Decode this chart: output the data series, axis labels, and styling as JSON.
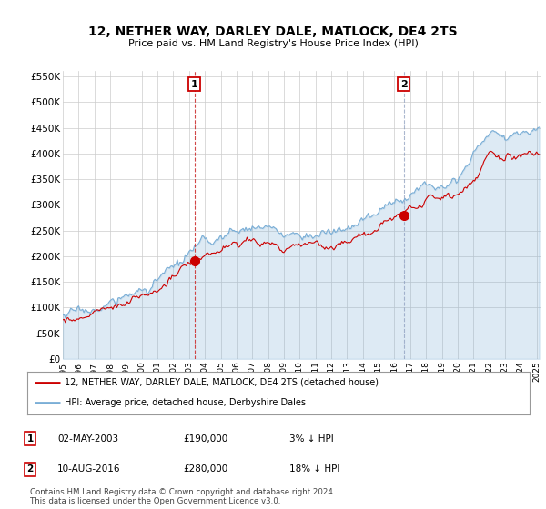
{
  "title": "12, NETHER WAY, DARLEY DALE, MATLOCK, DE4 2TS",
  "subtitle": "Price paid vs. HM Land Registry's House Price Index (HPI)",
  "ylabel_ticks": [
    "£0",
    "£50K",
    "£100K",
    "£150K",
    "£200K",
    "£250K",
    "£300K",
    "£350K",
    "£400K",
    "£450K",
    "£500K",
    "£550K"
  ],
  "ytick_values": [
    0,
    50000,
    100000,
    150000,
    200000,
    250000,
    300000,
    350000,
    400000,
    450000,
    500000,
    550000
  ],
  "ylim": [
    0,
    560000
  ],
  "sale1_year": 2003,
  "sale1_month": 5,
  "sale1_price": 190000,
  "sale2_year": 2016,
  "sale2_month": 8,
  "sale2_price": 280000,
  "legend_line1": "12, NETHER WAY, DARLEY DALE, MATLOCK, DE4 2TS (detached house)",
  "legend_line2": "HPI: Average price, detached house, Derbyshire Dales",
  "table_row1": [
    "1",
    "02-MAY-2003",
    "£190,000",
    "3% ↓ HPI"
  ],
  "table_row2": [
    "2",
    "10-AUG-2016",
    "£280,000",
    "18% ↓ HPI"
  ],
  "footer": "Contains HM Land Registry data © Crown copyright and database right 2024.\nThis data is licensed under the Open Government Licence v3.0.",
  "line_color_red": "#cc0000",
  "line_color_blue": "#7aaed6",
  "fill_color_blue": "#ddeeff",
  "vline1_color": "#cc3333",
  "vline2_color": "#8899bb",
  "marker_color_red": "#cc0000",
  "bg_color": "#ffffff",
  "grid_color": "#cccccc",
  "hpi_ctrl_years": [
    1995,
    1996,
    1997,
    1998,
    1999,
    2000,
    2001,
    2002,
    2003,
    2004,
    2005,
    2006,
    2007,
    2008,
    2009,
    2010,
    2011,
    2012,
    2013,
    2014,
    2015,
    2016,
    2017,
    2018,
    2019,
    2020,
    2021,
    2022,
    2023,
    2024,
    2025
  ],
  "hpi_ctrl_vals": [
    85000,
    90000,
    97000,
    107000,
    120000,
    135000,
    152000,
    175000,
    200000,
    225000,
    235000,
    248000,
    262000,
    252000,
    238000,
    245000,
    243000,
    244000,
    252000,
    268000,
    285000,
    305000,
    325000,
    338000,
    350000,
    358000,
    395000,
    445000,
    430000,
    440000,
    455000
  ],
  "noise_seed": 17
}
